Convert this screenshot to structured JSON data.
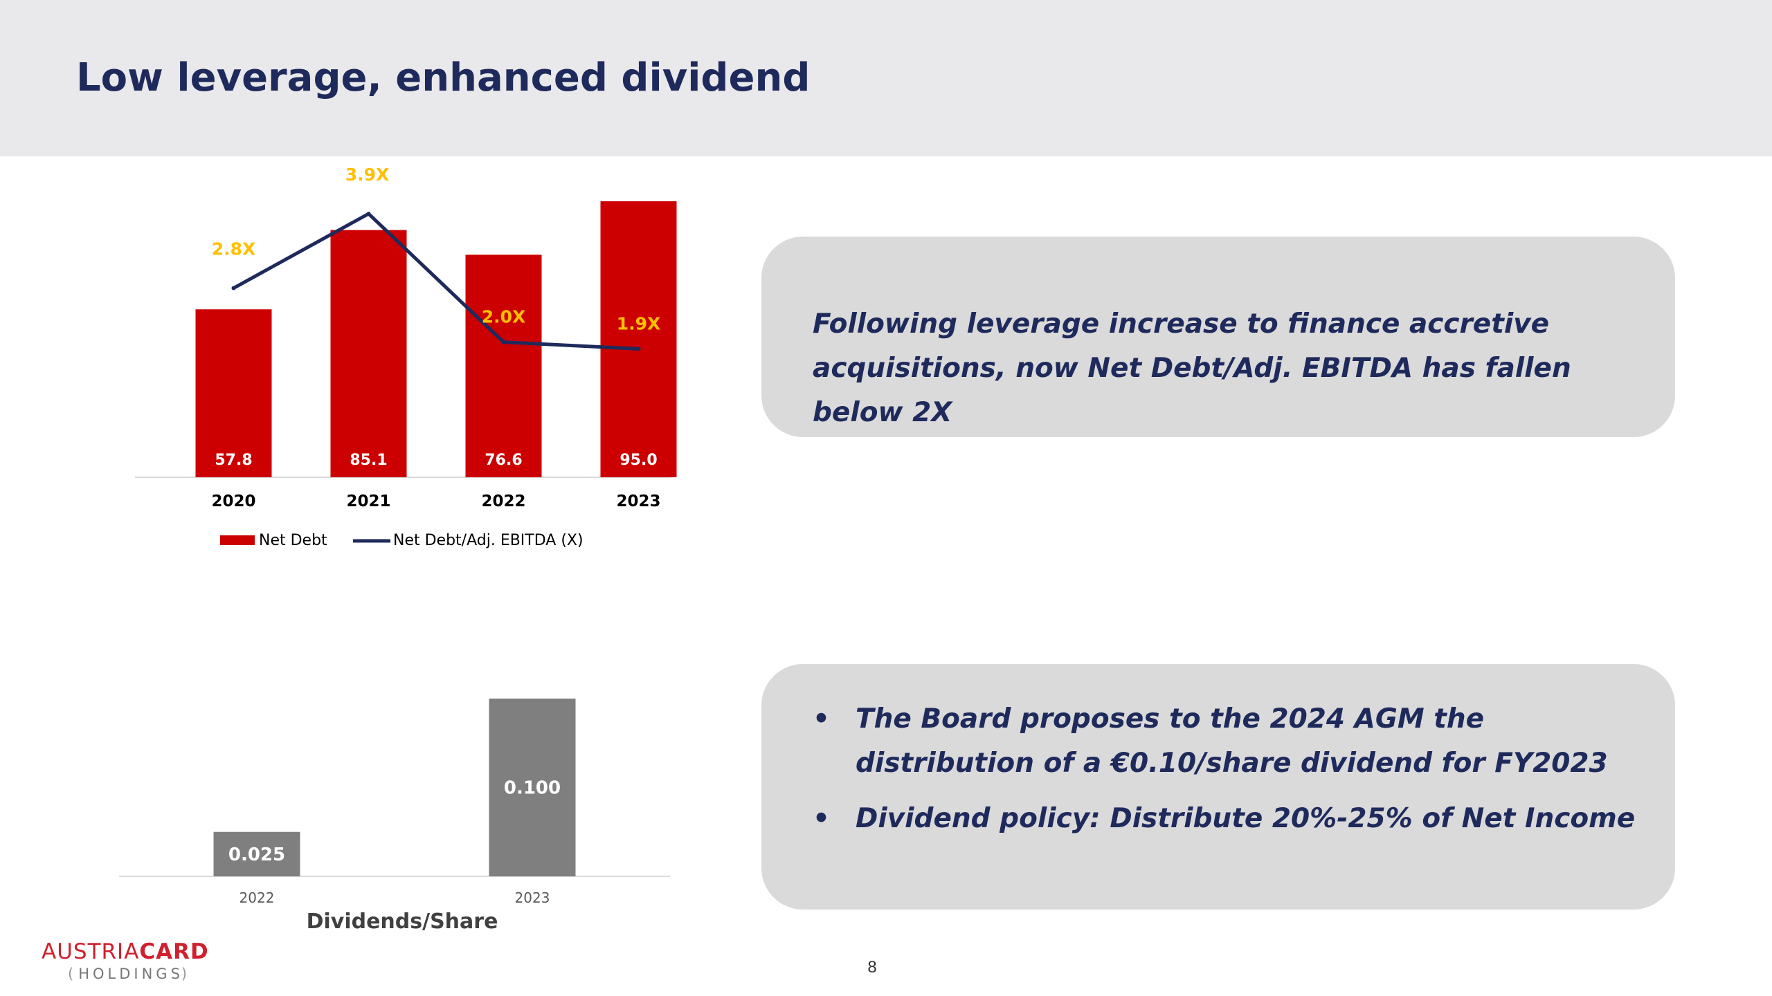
{
  "slide": {
    "title": "Low leverage, enhanced dividend",
    "page_number": "8"
  },
  "callouts": {
    "leverage_text": "Following leverage increase to finance accretive acquisitions, now Net Debt/Adj. EBITDA has fallen below 2X",
    "dividend_bullets": [
      "The Board proposes to the 2024 AGM the distribution of a €0.10/share dividend for FY2023",
      "Dividend policy:  Distribute 20%-25% of Net Income"
    ]
  },
  "logo": {
    "brand_part1": "AUSTRIA",
    "brand_part2": "CARD",
    "sub": "HOLDINGS"
  },
  "colors": {
    "header_band": "#e9e9eb",
    "title": "#1f2a5c",
    "net_debt_bar": "#cc0000",
    "ratio_line": "#1f2a5c",
    "ratio_label": "#ffc000",
    "dividend_bar": "#7f7f7f",
    "callout_bg": "#dadada",
    "brand_red": "#d0202e"
  },
  "chart_data": [
    {
      "type": "bar",
      "categories": [
        "2020",
        "2021",
        "2022",
        "2023"
      ],
      "series": [
        {
          "name": "Net Debt",
          "kind": "bar",
          "values": [
            57.8,
            85.1,
            76.6,
            95.0
          ],
          "labels": [
            "57.8",
            "85.1",
            "76.6",
            "95.0"
          ]
        },
        {
          "name": "Net Debt/Adj. EBITDA (X)",
          "kind": "line",
          "values": [
            2.8,
            3.9,
            2.0,
            1.9
          ],
          "labels": [
            "2.8X",
            "3.9X",
            "2.0X",
            "1.9X"
          ]
        }
      ],
      "ylim": [
        0,
        100
      ],
      "y2lim": [
        0,
        4.3
      ],
      "legend_position": "bottom",
      "grid": false
    },
    {
      "type": "bar",
      "categories": [
        "2022",
        "2023"
      ],
      "values": [
        0.025,
        0.1
      ],
      "labels": [
        "0.025",
        "0.100"
      ],
      "xlabel": "Dividends/Share",
      "ylim": [
        0,
        0.1
      ],
      "grid": false
    }
  ]
}
